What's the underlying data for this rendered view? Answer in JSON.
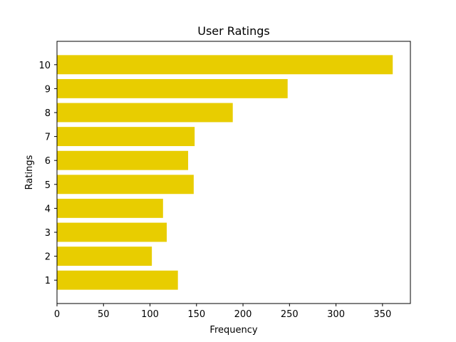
{
  "chart_data": {
    "type": "bar",
    "orientation": "horizontal",
    "title": "User Ratings",
    "xlabel": "Frequency",
    "ylabel": "Ratings",
    "categories": [
      "1",
      "2",
      "3",
      "4",
      "5",
      "6",
      "7",
      "8",
      "9",
      "10"
    ],
    "values": [
      130,
      102,
      118,
      114,
      147,
      141,
      148,
      189,
      248,
      361
    ],
    "xlim": [
      0,
      380
    ],
    "xticks": [
      0,
      50,
      100,
      150,
      200,
      250,
      300,
      350
    ],
    "grid": false,
    "bar_color": "#e8cd00"
  }
}
